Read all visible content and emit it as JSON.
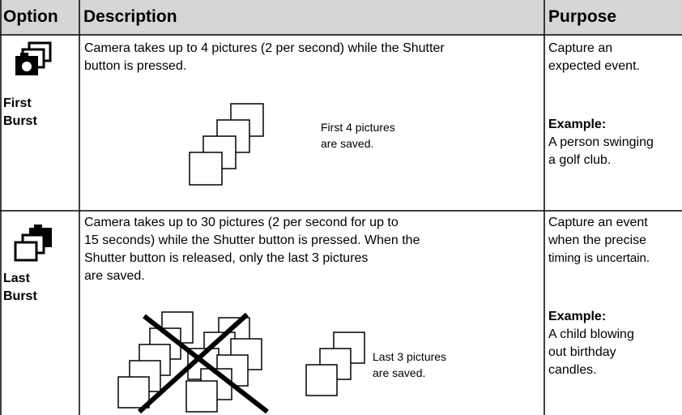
{
  "table": {
    "header": [
      "Option",
      "Description",
      "Purpose"
    ],
    "rows": [
      {
        "option": [
          "First",
          "Burst"
        ],
        "description": [
          "Camera takes up to 4 pictures (2 per second) while the Shutter",
          "button is pressed."
        ],
        "caption": [
          "First 4 pictures",
          "are saved."
        ],
        "purpose": [
          "Capture an",
          "expected event."
        ],
        "example_label": "Example:",
        "example": [
          "A person swinging",
          "a golf club."
        ]
      },
      {
        "option": [
          "Last",
          "Burst"
        ],
        "description": [
          "Camera takes up to 30 pictures (2 per second for up to",
          "15 seconds) while the Shutter button is pressed. When the",
          "Shutter button is released, only the last 3 pictures",
          "are saved."
        ],
        "caption": [
          "Last 3 pictures",
          "are saved."
        ],
        "purpose": [
          "Capture an event",
          "when the precise",
          "timing is uncertain."
        ],
        "example_label": "Example:",
        "example": [
          "A child blowing",
          "out birthday",
          "candles."
        ]
      }
    ]
  }
}
